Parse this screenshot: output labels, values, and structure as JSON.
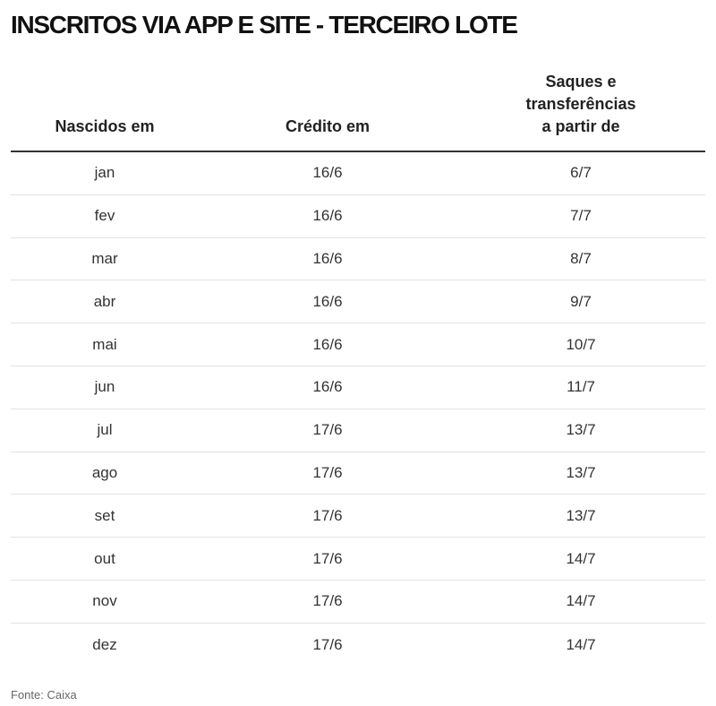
{
  "title": "INSCRITOS VIA APP E SITE - TERCEIRO LOTE",
  "table": {
    "headers": [
      "Nascidos em",
      "Crédito em",
      "Saques e\ntransferências\na partir de"
    ],
    "rows": [
      [
        "jan",
        "16/6",
        "6/7"
      ],
      [
        "fev",
        "16/6",
        "7/7"
      ],
      [
        "mar",
        "16/6",
        "8/7"
      ],
      [
        "abr",
        "16/6",
        "9/7"
      ],
      [
        "mai",
        "16/6",
        "10/7"
      ],
      [
        "jun",
        "16/6",
        "11/7"
      ],
      [
        "jul",
        "17/6",
        "13/7"
      ],
      [
        "ago",
        "17/6",
        "13/7"
      ],
      [
        "set",
        "17/6",
        "13/7"
      ],
      [
        "out",
        "17/6",
        "14/7"
      ],
      [
        "nov",
        "17/6",
        "14/7"
      ],
      [
        "dez",
        "17/6",
        "14/7"
      ]
    ]
  },
  "source": "Fonte: Caixa"
}
